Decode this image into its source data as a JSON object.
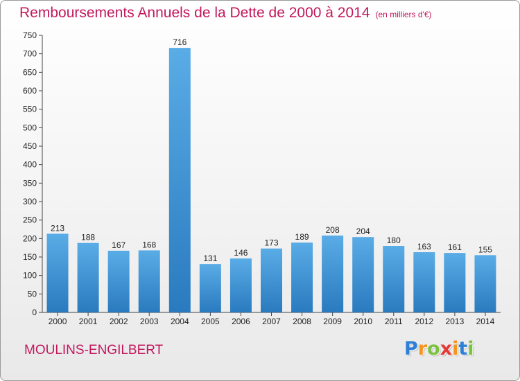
{
  "title": "Remboursements Annuels de la Dette de 2000 à 2014",
  "unit": "(en milliers d'€)",
  "commune": "MOULINS-ENGILBERT",
  "logo": {
    "text": "Proxiti",
    "letters": [
      "P",
      "r",
      "o",
      "x",
      "i",
      "t",
      "i"
    ],
    "colors": [
      "#2e7fd6",
      "#f7941d",
      "#7cc242",
      "#e53935",
      "#f7941d",
      "#2e7fd6",
      "#7cc242"
    ]
  },
  "chart_data": {
    "type": "bar",
    "title": "Remboursements Annuels de la Dette de 2000 à 2014",
    "subtitle": "(en milliers d'€)",
    "xlabel": "",
    "ylabel": "",
    "categories": [
      "2000",
      "2001",
      "2002",
      "2003",
      "2004",
      "2005",
      "2006",
      "2007",
      "2008",
      "2009",
      "2010",
      "2011",
      "2012",
      "2013",
      "2014"
    ],
    "values": [
      213,
      188,
      167,
      168,
      716,
      131,
      146,
      173,
      189,
      208,
      204,
      180,
      163,
      161,
      155
    ],
    "ylim": [
      0,
      750
    ],
    "yticks": [
      0,
      50,
      100,
      150,
      200,
      250,
      300,
      350,
      400,
      450,
      500,
      550,
      600,
      650,
      700,
      750
    ],
    "grid": false,
    "bar_color_top": "#5aace6",
    "bar_color_bottom": "#2a7abf"
  }
}
